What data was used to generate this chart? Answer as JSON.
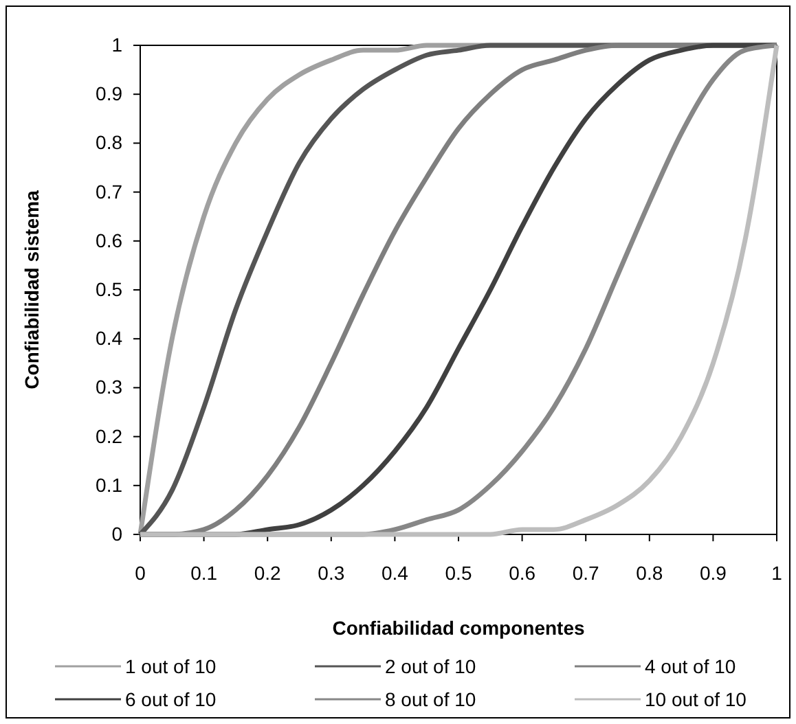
{
  "chart_data": {
    "type": "line",
    "xlabel": "Confiabilidad componentes",
    "ylabel": "Confiabilidad sistema",
    "x": [
      0,
      0.05,
      0.1,
      0.15,
      0.2,
      0.25,
      0.3,
      0.35,
      0.4,
      0.45,
      0.5,
      0.55,
      0.6,
      0.65,
      0.7,
      0.75,
      0.8,
      0.85,
      0.9,
      0.95,
      1
    ],
    "series": [
      {
        "name": "1 out of 10",
        "color": "#a0a0a0",
        "values": [
          0,
          0.4,
          0.65,
          0.8,
          0.89,
          0.94,
          0.97,
          0.99,
          0.99,
          1,
          1,
          1,
          1,
          1,
          1,
          1,
          1,
          1,
          1,
          1,
          1
        ]
      },
      {
        "name": "2 out of 10",
        "color": "#555555",
        "values": [
          0,
          0.09,
          0.26,
          0.46,
          0.62,
          0.76,
          0.85,
          0.91,
          0.95,
          0.98,
          0.99,
          1,
          1,
          1,
          1,
          1,
          1,
          1,
          1,
          1,
          1
        ]
      },
      {
        "name": "4 out of 10",
        "color": "#7f7f7f",
        "values": [
          0,
          0,
          0.01,
          0.05,
          0.12,
          0.22,
          0.35,
          0.49,
          0.62,
          0.73,
          0.83,
          0.9,
          0.95,
          0.97,
          0.99,
          1,
          1,
          1,
          1,
          1,
          1
        ]
      },
      {
        "name": "6 out of 10",
        "color": "#404040",
        "values": [
          0,
          0,
          0,
          0,
          0.01,
          0.02,
          0.05,
          0.1,
          0.17,
          0.26,
          0.38,
          0.5,
          0.63,
          0.75,
          0.85,
          0.92,
          0.97,
          0.99,
          1,
          1,
          1
        ]
      },
      {
        "name": "8 out of 10",
        "color": "#878787",
        "values": [
          0,
          0,
          0,
          0,
          0,
          0,
          0,
          0,
          0.01,
          0.03,
          0.05,
          0.1,
          0.17,
          0.26,
          0.38,
          0.53,
          0.68,
          0.82,
          0.93,
          0.99,
          1
        ]
      },
      {
        "name": "10 out of 10",
        "color": "#bdbdbd",
        "values": [
          0,
          0,
          0,
          0,
          0,
          0,
          0,
          0,
          0,
          0,
          0,
          0,
          0.01,
          0.01,
          0.03,
          0.06,
          0.11,
          0.2,
          0.35,
          0.6,
          1
        ]
      }
    ],
    "xlim": [
      0,
      1
    ],
    "xticks": [
      0,
      0.1,
      0.2,
      0.3,
      0.4,
      0.5,
      0.6,
      0.7,
      0.8,
      0.9,
      1
    ],
    "ylim": [
      0,
      1
    ],
    "yticks": [
      0,
      0.1,
      0.2,
      0.3,
      0.4,
      0.5,
      0.6,
      0.7,
      0.8,
      0.9,
      1
    ],
    "grid": false,
    "legend": "bottom",
    "marker": "none",
    "line_style": "solid"
  }
}
